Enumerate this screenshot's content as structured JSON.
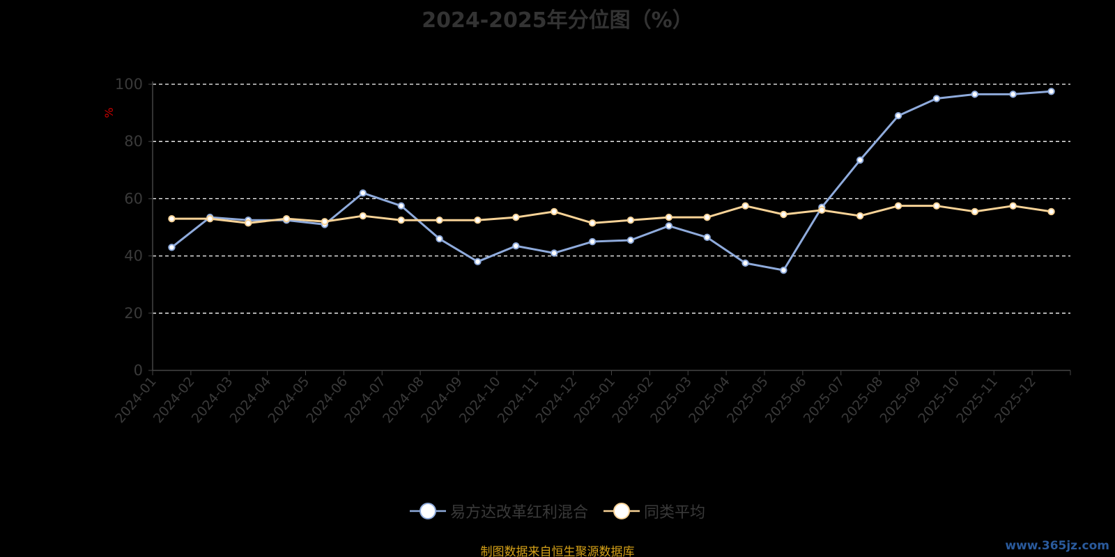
{
  "chart_data": {
    "type": "line",
    "title": "2024-2025年分位图（%）",
    "ylabel": "%",
    "xlabel": "",
    "ylim": [
      0,
      100
    ],
    "yticks": [
      0,
      20,
      40,
      60,
      80,
      100
    ],
    "grid": true,
    "legend_position": "bottom",
    "categories": [
      "2024-01",
      "2024-02",
      "2024-03",
      "2024-04",
      "2024-05",
      "2024-06",
      "2024-07",
      "2024-08",
      "2024-09",
      "2024-10",
      "2024-11",
      "2024-12",
      "2025-01",
      "2025-02",
      "2025-03",
      "2025-04",
      "2025-05",
      "2025-06",
      "2025-07",
      "2025-08",
      "2025-09",
      "2025-10",
      "2025-11",
      "2025-12"
    ],
    "series": [
      {
        "name": "易方达改革红利混合",
        "color": "#8fabdc",
        "values": [
          43.0,
          53.5,
          52.5,
          52.5,
          51.0,
          62.0,
          57.5,
          46.0,
          38.0,
          43.5,
          41.0,
          45.0,
          45.5,
          50.5,
          46.5,
          37.5,
          35.0,
          57.0,
          73.5,
          89.0,
          95.0,
          96.5,
          96.5,
          97.5
        ]
      },
      {
        "name": "同类平均",
        "color": "#f8d397",
        "values": [
          53.0,
          53.0,
          51.5,
          53.0,
          52.0,
          54.0,
          52.5,
          52.5,
          52.5,
          53.5,
          55.5,
          51.5,
          52.5,
          53.5,
          53.5,
          57.5,
          54.5,
          56.0,
          54.0,
          57.5,
          57.5,
          55.5,
          57.5,
          55.5
        ]
      }
    ]
  },
  "source_note": "制图数据来自恒生聚源数据库",
  "watermark": "www.365jz.com",
  "colors": {
    "background": "#000000",
    "title": "#333333",
    "axis_text": "#3a3a3a",
    "ylabel": "#cc0000",
    "grid": "#ffffff",
    "source_note": "#d4a017",
    "watermark": "#2a5a9c"
  }
}
